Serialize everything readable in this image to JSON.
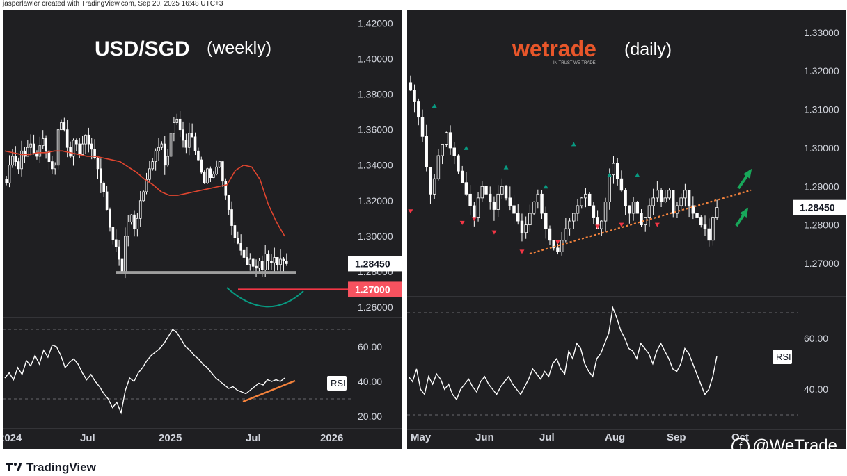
{
  "header": {
    "credit": "jasperlawler created with TradingView.com, Sep 20, 2025 16:48 UTC+3"
  },
  "colors": {
    "panel_bg": "#1f1f22",
    "candle": "#ffffff",
    "ma_line": "#e0452f",
    "support_line": "#9e9e9e",
    "target_line": "#f23645",
    "target_badge": "#f7525f",
    "curve": "#089981",
    "trend": "#f5833c",
    "arrow": "#18a75a",
    "marker_up": "#089981",
    "marker_down": "#f23645",
    "text": "#d1d4dc",
    "grid": "#3a3a3e"
  },
  "chart_data": [
    {
      "type": "candlestick",
      "title": "USD/SGD",
      "subtitle": "(weekly)",
      "price_axis": {
        "ticks": [
          1.42,
          1.4,
          1.38,
          1.36,
          1.34,
          1.32,
          1.3,
          1.28,
          1.26
        ],
        "tick_labels": [
          "1.42000",
          "1.40000",
          "1.38000",
          "1.36000",
          "1.34000",
          "1.32000",
          "1.30000",
          "1.28000",
          "1.26000"
        ],
        "range": [
          1.2545,
          1.4245
        ]
      },
      "current_price": {
        "value": 1.2845,
        "label": "1.28450"
      },
      "target_level": {
        "value": 1.27,
        "label": "1.27000"
      },
      "support_level": 1.2795,
      "x_axis": {
        "labels": [
          "2024",
          "Jul",
          "2025",
          "Jul",
          "2026"
        ]
      },
      "closes": [
        1.33,
        1.34,
        1.345,
        1.342,
        1.338,
        1.348,
        1.345,
        1.35,
        1.352,
        1.347,
        1.345,
        1.351,
        1.355,
        1.348,
        1.342,
        1.338,
        1.34,
        1.36,
        1.364,
        1.36,
        1.35,
        1.345,
        1.354,
        1.352,
        1.346,
        1.352,
        1.357,
        1.352,
        1.349,
        1.344,
        1.338,
        1.33,
        1.325,
        1.315,
        1.305,
        1.298,
        1.294,
        1.287,
        1.28,
        1.3,
        1.308,
        1.312,
        1.304,
        1.31,
        1.32,
        1.325,
        1.332,
        1.338,
        1.342,
        1.348,
        1.35,
        1.352,
        1.34,
        1.345,
        1.358,
        1.364,
        1.366,
        1.36,
        1.354,
        1.35,
        1.358,
        1.356,
        1.348,
        1.343,
        1.336,
        1.33,
        1.338,
        1.333,
        1.335,
        1.339,
        1.342,
        1.331,
        1.323,
        1.315,
        1.306,
        1.299,
        1.296,
        1.292,
        1.288,
        1.284,
        1.287,
        1.283,
        1.282,
        1.286,
        1.281,
        1.29,
        1.286,
        1.285,
        1.288,
        1.284,
        1.287,
        1.286,
        1.2845
      ],
      "ma": [
        1.348,
        1.347,
        1.346,
        1.346,
        1.347,
        1.347,
        1.348,
        1.348,
        1.347,
        1.346,
        1.345,
        1.345,
        1.344,
        1.343,
        1.342,
        1.339,
        1.336,
        1.332,
        1.329,
        1.325,
        1.323,
        1.323,
        1.324,
        1.325,
        1.326,
        1.327,
        1.328,
        1.329,
        1.337,
        1.34,
        1.339,
        1.332,
        1.318,
        1.308,
        1.3
      ],
      "rsi": {
        "label": "RSI",
        "ticks": [
          60,
          40,
          20
        ],
        "tick_labels": [
          "60.00",
          "40.00",
          "20.00"
        ],
        "range": [
          14,
          76
        ],
        "levels": [
          70,
          30
        ],
        "values": [
          42,
          45,
          41,
          48,
          44,
          52,
          49,
          55,
          50,
          58,
          54,
          61,
          60,
          55,
          48,
          51,
          53,
          50,
          45,
          41,
          44,
          40,
          37,
          33,
          30,
          25,
          28,
          22,
          35,
          42,
          40,
          45,
          48,
          52,
          55,
          57,
          59,
          62,
          66,
          70,
          68,
          64,
          60,
          58,
          55,
          53,
          50,
          48,
          45,
          42,
          40,
          38,
          36,
          37,
          35,
          34,
          33,
          35,
          37,
          39,
          38,
          41,
          40,
          41,
          40,
          42
        ]
      },
      "annotations": {
        "support": true,
        "target_curve": true,
        "rsi_trend": true
      }
    },
    {
      "type": "candlestick",
      "title": "wetrade",
      "tagline": "IN TRUST WE TRADE",
      "subtitle": "(daily)",
      "price_axis": {
        "ticks": [
          1.33,
          1.32,
          1.31,
          1.3,
          1.29,
          1.28,
          1.27
        ],
        "tick_labels": [
          "1.33000",
          "1.32000",
          "1.31000",
          "1.30000",
          "1.29000",
          "1.28000",
          "1.27000"
        ],
        "range": [
          1.2615,
          1.3345
        ]
      },
      "current_price": {
        "value": 1.2845,
        "label": "1.28450"
      },
      "x_axis": {
        "labels": [
          "May",
          "Jun",
          "Jul",
          "Aug",
          "Sep",
          "Oct"
        ]
      },
      "closes": [
        1.315,
        1.312,
        1.308,
        1.303,
        1.295,
        1.288,
        1.292,
        1.298,
        1.301,
        1.304,
        1.3,
        1.298,
        1.294,
        1.291,
        1.288,
        1.285,
        1.282,
        1.287,
        1.29,
        1.288,
        1.286,
        1.284,
        1.288,
        1.29,
        1.287,
        1.285,
        1.283,
        1.281,
        1.278,
        1.28,
        1.283,
        1.286,
        1.288,
        1.283,
        1.279,
        1.276,
        1.274,
        1.273,
        1.276,
        1.279,
        1.281,
        1.283,
        1.285,
        1.287,
        1.288,
        1.285,
        1.282,
        1.279,
        1.281,
        1.286,
        1.293,
        1.296,
        1.292,
        1.289,
        1.285,
        1.283,
        1.286,
        1.283,
        1.28,
        1.282,
        1.285,
        1.287,
        1.289,
        1.286,
        1.287,
        1.289,
        1.283,
        1.285,
        1.287,
        1.289,
        1.285,
        1.283,
        1.282,
        1.28,
        1.279,
        1.276,
        1.282,
        1.2845
      ],
      "up_markers": [
        [
          6,
          1.311
        ],
        [
          14,
          1.3
        ],
        [
          24,
          1.295
        ],
        [
          34,
          1.29
        ],
        [
          41,
          1.301
        ],
        [
          50,
          1.293
        ],
        [
          57,
          1.293
        ]
      ],
      "down_markers": [
        [
          0,
          1.2835
        ],
        [
          13,
          1.2805
        ],
        [
          16,
          1.2815
        ],
        [
          21,
          1.278
        ],
        [
          28,
          1.273
        ],
        [
          37,
          1.2755
        ],
        [
          47,
          1.2795
        ],
        [
          53,
          1.28
        ],
        [
          62,
          1.28
        ]
      ],
      "trendline": {
        "start": [
          1.2725
        ],
        "end": [
          1.289
        ]
      },
      "rsi": {
        "label": "RSI",
        "ticks": [
          60,
          40
        ],
        "tick_labels": [
          "60.00",
          "40.00"
        ],
        "range": [
          27,
          76
        ],
        "levels": [
          70,
          30
        ],
        "values": [
          45,
          43,
          48,
          40,
          38,
          45,
          42,
          46,
          44,
          40,
          42,
          38,
          36,
          40,
          42,
          44,
          41,
          39,
          43,
          45,
          42,
          40,
          38,
          41,
          43,
          45,
          42,
          40,
          38,
          41,
          44,
          48,
          46,
          44,
          47,
          45,
          50,
          52,
          48,
          46,
          55,
          52,
          58,
          56,
          50,
          47,
          45,
          52,
          54,
          58,
          62,
          72,
          68,
          63,
          60,
          56,
          55,
          52,
          58,
          56,
          54,
          50,
          55,
          58,
          55,
          52,
          48,
          47,
          50,
          56,
          54,
          50,
          46,
          42,
          38,
          40,
          45,
          53
        ]
      }
    }
  ],
  "footer": {
    "brand": "TradingView",
    "watermark": "@WeTrade"
  }
}
